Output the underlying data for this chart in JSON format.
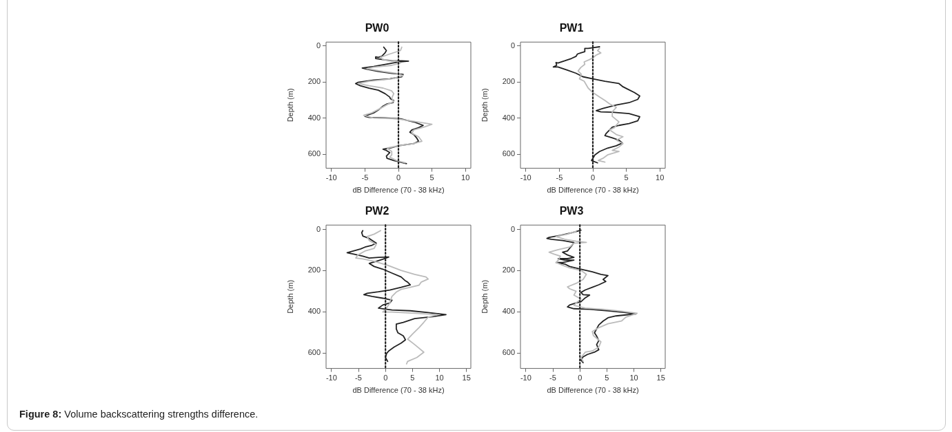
{
  "chart_data": [
    {
      "type": "line",
      "title": "PW0",
      "xlabel": "dB Difference (70 - 38 kHz)",
      "ylabel": "Depth (m)",
      "xlim": [
        -10.8,
        10.8
      ],
      "xticks": [
        -10,
        -5,
        0,
        5,
        10
      ],
      "ylim": [
        678,
        -22
      ],
      "yticks": [
        0,
        200,
        400,
        600
      ],
      "grid": false,
      "legend": false,
      "marker": "none",
      "line_style": "solid",
      "ref_lines": [
        {
          "axis": "x",
          "value": 0,
          "color": "#222222",
          "line_style": "dotted"
        }
      ],
      "series": [
        {
          "color": "#bbbbbb",
          "x": [
            0.5,
            0.3,
            -1.3,
            -2.7,
            -2.3,
            -0.3,
            0.3,
            -1,
            -3.7,
            -4.7,
            -2.3,
            -0.3,
            0.7,
            -1,
            -4.4,
            -6.0,
            -4.4,
            -2.3,
            -1.0,
            -0.7,
            -1.0,
            -0.7,
            -1.7,
            -2.7,
            -4.0,
            -5.2,
            -3.7,
            -0.3,
            2.3,
            5.0,
            4.0,
            2.3,
            2.0,
            3.0,
            3.5,
            2.3,
            0,
            -1.7,
            -1.0,
            -1.0,
            -1.3,
            -0.3,
            1.0
          ],
          "values": [
            6,
            25,
            44,
            63,
            75,
            82,
            94,
            107,
            117,
            126,
            141,
            151,
            164,
            182,
            195,
            208,
            220,
            233,
            249,
            264,
            289,
            308,
            325,
            346,
            371,
            384,
            399,
            403,
            418,
            434,
            447,
            465,
            484,
            503,
            528,
            541,
            553,
            566,
            585,
            604,
            616,
            635,
            648
          ]
        },
        {
          "color": "#222222",
          "x": [
            -2.2,
            -1.8,
            -2.0,
            -2.5,
            -3.0,
            -3.4,
            -3.4,
            -2.3,
            -1.0,
            0.5,
            1.5,
            0,
            -1.7,
            -3.7,
            -5.4,
            -4.7,
            -3.0,
            -1.0,
            0.7,
            0.5,
            -1.3,
            -3.7,
            -6.0,
            -6.4,
            -5.7,
            -4.4,
            -3.0,
            -2.0,
            -1.3,
            -1.2,
            -0.7,
            -0.8,
            -1.7,
            -2.3,
            -2.9,
            -3.7,
            -4.7,
            -5.0,
            -4.4,
            -2.0,
            0.3,
            2.3,
            3.7,
            3.0,
            2.0,
            1.7,
            2.3,
            2.7,
            3.0,
            2.3,
            0,
            -1.3,
            -2.3,
            -1.8,
            -1.3,
            -1.8,
            -1.7,
            -0.7,
            1.2
          ],
          "values": [
            6,
            25,
            38,
            57,
            63,
            60,
            69,
            75,
            82,
            82,
            84,
            88,
            100,
            113,
            122,
            128,
            141,
            151,
            157,
            170,
            182,
            189,
            201,
            208,
            220,
            233,
            245,
            264,
            283,
            292,
            302,
            314,
            321,
            333,
            352,
            371,
            384,
            390,
            396,
            399,
            403,
            421,
            440,
            453,
            465,
            478,
            491,
            509,
            528,
            541,
            553,
            566,
            572,
            579,
            591,
            610,
            623,
            635,
            652
          ]
        }
      ]
    },
    {
      "type": "line",
      "title": "PW1",
      "xlabel": "dB Difference (70 - 38 kHz)",
      "ylabel": "Depth (m)",
      "xlim": [
        -10.8,
        10.8
      ],
      "xticks": [
        -10,
        -5,
        0,
        5,
        10
      ],
      "ylim": [
        678,
        -22
      ],
      "yticks": [
        0,
        200,
        400,
        600
      ],
      "grid": false,
      "legend": false,
      "marker": "none",
      "line_style": "solid",
      "ref_lines": [
        {
          "axis": "x",
          "value": 0,
          "color": "#222222",
          "line_style": "dotted"
        }
      ],
      "series": [
        {
          "color": "#bbbbbb",
          "x": [
            1.0,
            0.7,
            1.2,
            0.5,
            0,
            -0.5,
            -1.3,
            -1.2,
            -1.8,
            -2.2,
            -1.7,
            -2.0,
            -1.3,
            -1.0,
            -0.7,
            0,
            1.0,
            1.8,
            2.5,
            3.5,
            2.9,
            2.9,
            3.9,
            3.2,
            2.5,
            3.5,
            4.5,
            3.5,
            4.5,
            3.9,
            2.9,
            3.9,
            2.2,
            1.5,
            0.8,
            1.8
          ],
          "values": [
            13,
            25,
            38,
            50,
            65,
            75,
            88,
            101,
            119,
            138,
            157,
            182,
            195,
            214,
            233,
            258,
            283,
            302,
            321,
            340,
            365,
            390,
            421,
            453,
            465,
            491,
            503,
            522,
            541,
            560,
            579,
            585,
            604,
            623,
            635,
            644
          ]
        },
        {
          "color": "#222222",
          "x": [
            1.0,
            0,
            -0.7,
            -1.2,
            -1.2,
            -1.8,
            -2.3,
            -2.5,
            -3.2,
            -4.2,
            -5.2,
            -5.5,
            -5.4,
            -5.9,
            -5.2,
            -3.9,
            -2.5,
            -1.5,
            0,
            1.8,
            3.9,
            4.5,
            5.2,
            6.2,
            7.0,
            6.7,
            5.4,
            3.5,
            1.5,
            0.5,
            1.2,
            2.9,
            5.4,
            7.0,
            6.7,
            5.4,
            3.9,
            2.9,
            2.5,
            2.0,
            1.8,
            2.9,
            3.9,
            4.4,
            3.5,
            2.2,
            1.0,
            0.3,
            0,
            -0.2,
            0.7
          ],
          "values": [
            4,
            9,
            13,
            13,
            31,
            38,
            44,
            57,
            69,
            82,
            94,
            91,
            107,
            116,
            116,
            132,
            151,
            170,
            182,
            195,
            208,
            226,
            239,
            258,
            277,
            296,
            314,
            327,
            346,
            358,
            365,
            367,
            375,
            392,
            415,
            430,
            440,
            450,
            465,
            484,
            497,
            509,
            522,
            538,
            553,
            566,
            585,
            604,
            623,
            635,
            648
          ]
        }
      ]
    },
    {
      "type": "line",
      "title": "PW2",
      "xlabel": "dB Difference (70 - 38 kHz)",
      "ylabel": "Depth (m)",
      "xlim": [
        -11.0,
        15.8
      ],
      "xticks": [
        -10,
        -5,
        0,
        5,
        10,
        15
      ],
      "ylim": [
        675,
        -21
      ],
      "yticks": [
        0,
        200,
        400,
        600
      ],
      "grid": false,
      "legend": false,
      "marker": "none",
      "line_style": "solid",
      "ref_lines": [
        {
          "axis": "x",
          "value": 0,
          "color": "#222222",
          "line_style": "dotted"
        }
      ],
      "series": [
        {
          "color": "#bbbbbb",
          "x": [
            -0.9,
            -2.1,
            -3.4,
            -3.0,
            -1.7,
            -2.1,
            -3.8,
            -5.1,
            -5.5,
            -4.2,
            -2.1,
            0.4,
            2.9,
            5.4,
            7.5,
            7.9,
            6.6,
            6.2,
            4.6,
            2.9,
            2.0,
            1.2,
            0.8,
            0.2,
            -0.5,
            1.2,
            5.4,
            9.6,
            7.9,
            7.1,
            6.2,
            5.0,
            4.1,
            5.4,
            7.1,
            5.8,
            4.1,
            3.9
          ],
          "values": [
            6,
            23,
            35,
            54,
            73,
            92,
            105,
            124,
            139,
            143,
            155,
            174,
            199,
            218,
            231,
            241,
            256,
            271,
            281,
            291,
            304,
            325,
            357,
            382,
            401,
            401,
            407,
            414,
            426,
            451,
            477,
            508,
            533,
            559,
            596,
            622,
            641,
            653
          ]
        },
        {
          "color": "#222222",
          "x": [
            -4.2,
            -4.4,
            -4.2,
            -3.0,
            -1.7,
            -2.5,
            -3.8,
            -4.6,
            -6.3,
            -7.1,
            -5.9,
            -4.2,
            -3.0,
            -1.3,
            0.6,
            -0.5,
            -1.7,
            -3.0,
            -2.1,
            -0.5,
            1.2,
            2.9,
            3.7,
            4.1,
            4.6,
            2.9,
            0.8,
            -1.3,
            -3.4,
            -4.0,
            -2.5,
            -0.5,
            1.2,
            0.8,
            -0.5,
            -1.3,
            -0.5,
            1.2,
            4.6,
            7.9,
            11.2,
            8.7,
            5.4,
            3.3,
            2.0,
            2.0,
            2.3,
            3.3,
            3.7,
            2.9,
            1.6,
            0.6,
            0.2,
            0,
            0.4
          ],
          "values": [
            6,
            16,
            32,
            44,
            67,
            77,
            86,
            95,
            107,
            113,
            120,
            130,
            139,
            136,
            134,
            145,
            155,
            165,
            180,
            193,
            212,
            231,
            250,
            256,
            269,
            281,
            294,
            303,
            310,
            317,
            325,
            334,
            344,
            357,
            367,
            382,
            385,
            391,
            395,
            404,
            414,
            424,
            433,
            451,
            460,
            483,
            502,
            517,
            536,
            552,
            571,
            590,
            603,
            622,
            641
          ]
        }
      ]
    },
    {
      "type": "line",
      "title": "PW3",
      "xlabel": "dB Difference (70 - 38 kHz)",
      "ylabel": "Depth (m)",
      "xlim": [
        -11.0,
        15.8
      ],
      "xticks": [
        -10,
        -5,
        0,
        5,
        10,
        15
      ],
      "ylim": [
        675,
        -21
      ],
      "yticks": [
        0,
        200,
        400,
        600
      ],
      "grid": false,
      "legend": false,
      "marker": "none",
      "line_style": "solid",
      "ref_lines": [
        {
          "axis": "x",
          "value": 0,
          "color": "#222222",
          "line_style": "dotted"
        }
      ],
      "annotations": [
        "Figure 8: Volume backscattering strengths difference."
      ],
      "series": [
        {
          "color": "#bbbbbb",
          "x": [
            -0.7,
            -2.3,
            -4.4,
            -2.8,
            -0.7,
            1.2,
            -1.1,
            -1.9,
            -4.0,
            -5.7,
            -4.8,
            -3.6,
            -4.0,
            -4.4,
            -3.2,
            -1.9,
            0.2,
            1.2,
            0.6,
            -0.7,
            -2.3,
            -1.9,
            -0.7,
            -1.1,
            0.2,
            -0.7,
            -1.1,
            1.0,
            4.3,
            7.7,
            10.6,
            8.5,
            7.7,
            5.2,
            3.5,
            2.3,
            2.5,
            3.9,
            3.5,
            2.3,
            1.0,
            0.2,
            0.6
          ],
          "values": [
            10,
            23,
            35,
            48,
            57,
            63,
            67,
            86,
            98,
            111,
            120,
            130,
            149,
            161,
            174,
            187,
            199,
            218,
            243,
            262,
            279,
            288,
            300,
            319,
            338,
            357,
            369,
            382,
            388,
            397,
            407,
            426,
            445,
            458,
            477,
            496,
            515,
            546,
            571,
            590,
            596,
            622,
            641
          ]
        },
        {
          "color": "#222222",
          "x": [
            0.2,
            -1.5,
            -3.6,
            -5.7,
            -6.1,
            -5.3,
            -3.2,
            -1.1,
            -1.5,
            -1.9,
            -2.3,
            -3.2,
            -2.3,
            -1.1,
            -2.3,
            -4.0,
            -2.8,
            -1.1,
            -3.2,
            -4.4,
            -2.8,
            -1.9,
            0.2,
            2.3,
            3.9,
            5.2,
            4.3,
            4.8,
            3.5,
            2.3,
            1.0,
            0.2,
            0.6,
            1.8,
            1.0,
            0.2,
            -0.7,
            -1.9,
            -2.3,
            -1.1,
            1.8,
            5.2,
            8.5,
            10.4,
            6.7,
            5.2,
            4.3,
            3.5,
            3.1,
            2.7,
            3.1,
            3.5,
            3.1,
            3.5,
            2.7,
            1.4,
            0.6,
            0.2,
            0.6
          ],
          "values": [
            4,
            16,
            29,
            39,
            44,
            48,
            54,
            64,
            79,
            92,
            105,
            111,
            124,
            136,
            142,
            142,
            149,
            149,
            161,
            161,
            168,
            180,
            193,
            206,
            218,
            224,
            243,
            253,
            269,
            281,
            294,
            306,
            317,
            319,
            332,
            351,
            357,
            367,
            376,
            385,
            388,
            395,
            404,
            410,
            420,
            429,
            445,
            464,
            483,
            502,
            518,
            540,
            559,
            584,
            596,
            607,
            619,
            634,
            647
          ]
        }
      ]
    }
  ]
}
